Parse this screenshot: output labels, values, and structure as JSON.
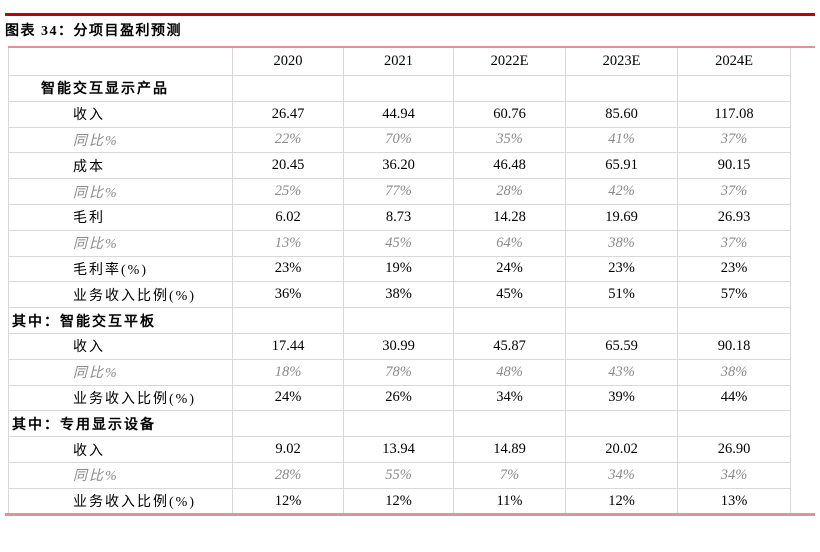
{
  "title": "图表 34：分项目盈利预测",
  "colors": {
    "accent_dark_red": "#c00000",
    "accent_pink": "#d99694",
    "border_gray": "#d8d8d8",
    "yoy_gray": "#8a8a8a"
  },
  "table": {
    "columns": [
      "",
      "2020",
      "2021",
      "2022E",
      "2023E",
      "2024E"
    ],
    "rows": [
      {
        "label": "智能交互显示产品",
        "style": "section",
        "values": [
          "",
          "",
          "",
          "",
          ""
        ]
      },
      {
        "label": "收入",
        "style": "item",
        "values": [
          "26.47",
          "44.94",
          "60.76",
          "85.60",
          "117.08"
        ]
      },
      {
        "label": "同比%",
        "style": "yoy",
        "values": [
          "22%",
          "70%",
          "35%",
          "41%",
          "37%"
        ]
      },
      {
        "label": "成本",
        "style": "item",
        "values": [
          "20.45",
          "36.20",
          "46.48",
          "65.91",
          "90.15"
        ]
      },
      {
        "label": "同比%",
        "style": "yoy",
        "values": [
          "25%",
          "77%",
          "28%",
          "42%",
          "37%"
        ]
      },
      {
        "label": "毛利",
        "style": "item",
        "values": [
          "6.02",
          "8.73",
          "14.28",
          "19.69",
          "26.93"
        ]
      },
      {
        "label": "同比%",
        "style": "yoy",
        "values": [
          "13%",
          "45%",
          "64%",
          "38%",
          "37%"
        ]
      },
      {
        "label": "毛利率(%)",
        "style": "item",
        "values": [
          "23%",
          "19%",
          "24%",
          "23%",
          "23%"
        ]
      },
      {
        "label": "业务收入比例(%)",
        "style": "item",
        "values": [
          "36%",
          "38%",
          "45%",
          "51%",
          "57%"
        ]
      },
      {
        "label": "其中：智能交互平板",
        "style": "subsection",
        "values": [
          "",
          "",
          "",
          "",
          ""
        ]
      },
      {
        "label": "收入",
        "style": "item",
        "values": [
          "17.44",
          "30.99",
          "45.87",
          "65.59",
          "90.18"
        ]
      },
      {
        "label": "同比%",
        "style": "yoy",
        "values": [
          "18%",
          "78%",
          "48%",
          "43%",
          "38%"
        ]
      },
      {
        "label": "业务收入比例(%)",
        "style": "item",
        "values": [
          "24%",
          "26%",
          "34%",
          "39%",
          "44%"
        ]
      },
      {
        "label": "其中：专用显示设备",
        "style": "subsection",
        "values": [
          "",
          "",
          "",
          "",
          ""
        ]
      },
      {
        "label": "收入",
        "style": "item",
        "values": [
          "9.02",
          "13.94",
          "14.89",
          "20.02",
          "26.90"
        ]
      },
      {
        "label": "同比%",
        "style": "yoy",
        "values": [
          "28%",
          "55%",
          "7%",
          "34%",
          "34%"
        ]
      },
      {
        "label": "业务收入比例(%)",
        "style": "item",
        "values": [
          "12%",
          "12%",
          "11%",
          "12%",
          "13%"
        ]
      }
    ]
  }
}
